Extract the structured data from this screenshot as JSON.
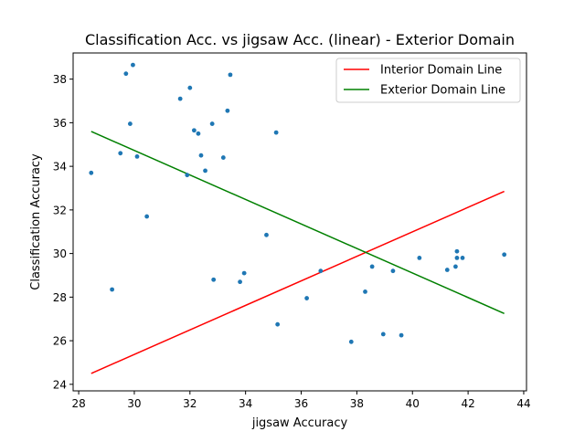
{
  "chart_data": {
    "type": "scatter",
    "title": "Classification Acc. vs jigsaw Acc. (linear) - Exterior Domain",
    "xlabel": "jigsaw Accuracy",
    "ylabel": "Classification Accuracy",
    "xlim": [
      27.8,
      44.1
    ],
    "ylim": [
      23.7,
      39.2
    ],
    "xticks": [
      28,
      30,
      32,
      34,
      36,
      38,
      40,
      42,
      44
    ],
    "yticks": [
      24,
      26,
      28,
      30,
      32,
      34,
      36,
      38
    ],
    "grid": false,
    "legend_position": "top-right",
    "points": {
      "color": "#1f77b4",
      "x": [
        28.45,
        29.2,
        29.5,
        29.7,
        29.85,
        29.95,
        30.1,
        30.45,
        31.65,
        31.9,
        32.0,
        32.15,
        32.3,
        32.4,
        32.55,
        32.8,
        32.85,
        33.2,
        33.35,
        33.45,
        33.8,
        33.95,
        34.75,
        35.1,
        35.15,
        36.2,
        36.7,
        37.8,
        38.3,
        38.55,
        38.95,
        39.3,
        39.6,
        40.25,
        41.25,
        41.55,
        41.6,
        41.6,
        41.8,
        43.3
      ],
      "y": [
        33.7,
        28.35,
        34.6,
        38.25,
        35.95,
        38.65,
        34.45,
        31.7,
        37.1,
        33.6,
        37.6,
        35.65,
        35.5,
        34.5,
        33.8,
        35.95,
        28.8,
        34.4,
        36.55,
        38.2,
        28.7,
        29.1,
        30.85,
        35.55,
        26.75,
        27.95,
        29.2,
        25.95,
        28.25,
        29.4,
        26.3,
        29.2,
        26.25,
        29.8,
        29.25,
        29.4,
        30.1,
        29.8,
        29.8,
        29.95
      ]
    },
    "series": [
      {
        "name": "Interior Domain Line",
        "color": "#ff0000",
        "x": [
          28.45,
          43.3
        ],
        "y": [
          24.5,
          32.85
        ]
      },
      {
        "name": "Exterior Domain Line",
        "color": "#008000",
        "x": [
          28.45,
          43.3
        ],
        "y": [
          35.6,
          27.25
        ]
      }
    ]
  }
}
